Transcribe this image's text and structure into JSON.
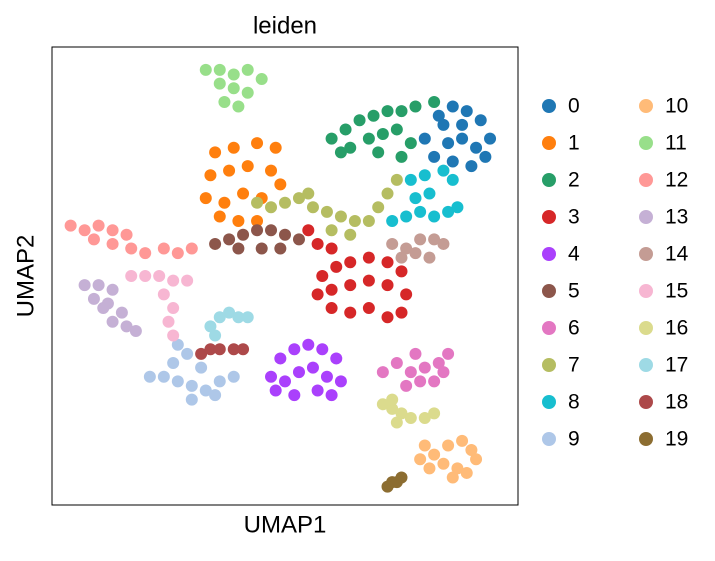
{
  "chart_data": {
    "type": "scatter",
    "title": "leiden",
    "xlabel": "UMAP1",
    "ylabel": "UMAP2",
    "xlim": [
      0,
      100
    ],
    "ylim": [
      0,
      100
    ],
    "series": [
      {
        "name": "0",
        "color": "#1f77b4",
        "x": [
          80,
          83,
          86,
          89,
          92,
          94,
          91,
          88,
          85,
          82,
          86,
          90,
          93,
          84,
          88
        ],
        "y": [
          80,
          85,
          87,
          86,
          84,
          80,
          78,
          80,
          79,
          76,
          75,
          74,
          76,
          83,
          83
        ]
      },
      {
        "name": "1",
        "color": "#ff7f0e",
        "x": [
          35,
          39,
          44,
          48,
          34,
          38,
          42,
          47,
          33,
          37,
          41,
          45,
          36,
          40,
          44,
          49
        ],
        "y": [
          77,
          78,
          79,
          78,
          72,
          73,
          74,
          73,
          67,
          66,
          68,
          67,
          63,
          62,
          62,
          70
        ]
      },
      {
        "name": "2",
        "color": "#279e68",
        "x": [
          60,
          63,
          66,
          69,
          72,
          75,
          78,
          82,
          64,
          68,
          71,
          74,
          77,
          70,
          75,
          62
        ],
        "y": [
          80,
          82,
          84,
          85,
          86,
          86,
          87,
          88,
          78,
          80,
          81,
          82,
          79,
          77,
          76,
          77
        ]
      },
      {
        "name": "3",
        "color": "#d62728",
        "x": [
          58,
          61,
          64,
          68,
          72,
          75,
          57,
          60,
          64,
          68,
          72,
          76,
          60,
          64,
          68,
          72,
          75,
          57,
          60,
          55
        ],
        "y": [
          50,
          52,
          53,
          54,
          53,
          51,
          46,
          47,
          48,
          49,
          48,
          46,
          43,
          42,
          43,
          41,
          42,
          57,
          56,
          60
        ]
      },
      {
        "name": "4",
        "color": "#aa40fc",
        "x": [
          47,
          49,
          52,
          55,
          58,
          61,
          50,
          53,
          56,
          59,
          62,
          48,
          52,
          57,
          60
        ],
        "y": [
          28,
          32,
          34,
          35,
          34,
          32,
          27,
          29,
          30,
          28,
          27,
          25,
          24,
          25,
          24
        ]
      },
      {
        "name": "5",
        "color": "#8c564b",
        "x": [
          35,
          38,
          41,
          44,
          47,
          50,
          53,
          40,
          45,
          49
        ],
        "y": [
          57,
          58,
          59,
          60,
          60,
          59,
          58,
          56,
          56,
          56
        ]
      },
      {
        "name": "6",
        "color": "#e377c2",
        "x": [
          71,
          74,
          77,
          80,
          83,
          85,
          76,
          79,
          82,
          84,
          78
        ],
        "y": [
          29,
          31,
          29,
          30,
          31,
          33,
          26,
          27,
          27,
          29,
          33
        ]
      },
      {
        "name": "7",
        "color": "#b5bd61",
        "x": [
          44,
          47,
          50,
          53,
          56,
          59,
          62,
          65,
          68,
          70,
          72,
          74,
          64,
          60,
          55
        ],
        "y": [
          66,
          65,
          66,
          67,
          65,
          64,
          63,
          62,
          62,
          65,
          68,
          71,
          59,
          60,
          68
        ]
      },
      {
        "name": "8",
        "color": "#17becf",
        "x": [
          73,
          76,
          79,
          82,
          85,
          87,
          78,
          81,
          80,
          84,
          77,
          86
        ],
        "y": [
          62,
          63,
          64,
          63,
          64,
          65,
          67,
          68,
          72,
          73,
          71,
          71
        ]
      },
      {
        "name": "9",
        "color": "#aec7e8",
        "x": [
          21,
          24,
          27,
          30,
          33,
          36,
          39,
          26,
          29,
          27,
          32,
          35,
          30
        ],
        "y": [
          28,
          28,
          27,
          26,
          25,
          27,
          28,
          31,
          33,
          35,
          30,
          24,
          23
        ]
      },
      {
        "name": "10",
        "color": "#ffbb78",
        "x": [
          79,
          82,
          85,
          88,
          90,
          91,
          84,
          87,
          81,
          86,
          89,
          80
        ],
        "y": [
          10,
          11,
          13,
          14,
          12,
          10,
          9,
          8,
          8,
          6,
          7,
          13
        ]
      },
      {
        "name": "11",
        "color": "#98df8a",
        "x": [
          33,
          36,
          39,
          42,
          45,
          36,
          39,
          42,
          37,
          40
        ],
        "y": [
          95,
          95,
          94,
          95,
          93,
          92,
          91,
          90,
          88,
          87
        ]
      },
      {
        "name": "12",
        "color": "#ff9896",
        "x": [
          4,
          7,
          10,
          13,
          9,
          13,
          17,
          20,
          24,
          27,
          30,
          16
        ],
        "y": [
          61,
          60,
          61,
          60,
          58,
          57,
          56,
          55,
          56,
          55,
          56,
          59
        ]
      },
      {
        "name": "13",
        "color": "#c5b0d5",
        "x": [
          7,
          10,
          13,
          9,
          12,
          15,
          13,
          16,
          18,
          11
        ],
        "y": [
          48,
          48,
          47,
          45,
          44,
          42,
          40,
          39,
          38,
          43
        ]
      },
      {
        "name": "14",
        "color": "#c49c94",
        "x": [
          73,
          76,
          79,
          82,
          84,
          75,
          78,
          81
        ],
        "y": [
          57,
          56,
          58,
          58,
          57,
          54,
          55,
          54
        ]
      },
      {
        "name": "15",
        "color": "#f7b6d2",
        "x": [
          17,
          20,
          23,
          26,
          29,
          24,
          26,
          25,
          26
        ],
        "y": [
          50,
          50,
          50,
          49,
          49,
          46,
          43,
          40,
          37
        ]
      },
      {
        "name": "16",
        "color": "#dbdb8d",
        "x": [
          71,
          73,
          75,
          77,
          80,
          82,
          74,
          73
        ],
        "y": [
          22,
          21,
          20,
          19,
          19,
          20,
          18,
          23
        ]
      },
      {
        "name": "17",
        "color": "#9edae5",
        "x": [
          34,
          36,
          38,
          40,
          42,
          35
        ],
        "y": [
          39,
          41,
          42,
          41,
          41,
          37
        ]
      },
      {
        "name": "18",
        "color": "#ad494a",
        "x": [
          32,
          34,
          36,
          39,
          41
        ],
        "y": [
          33,
          34,
          34,
          34,
          34
        ]
      },
      {
        "name": "19",
        "color": "#8c6d31",
        "x": [
          73,
          74,
          75,
          72
        ],
        "y": [
          5,
          5,
          6,
          4
        ]
      }
    ]
  }
}
